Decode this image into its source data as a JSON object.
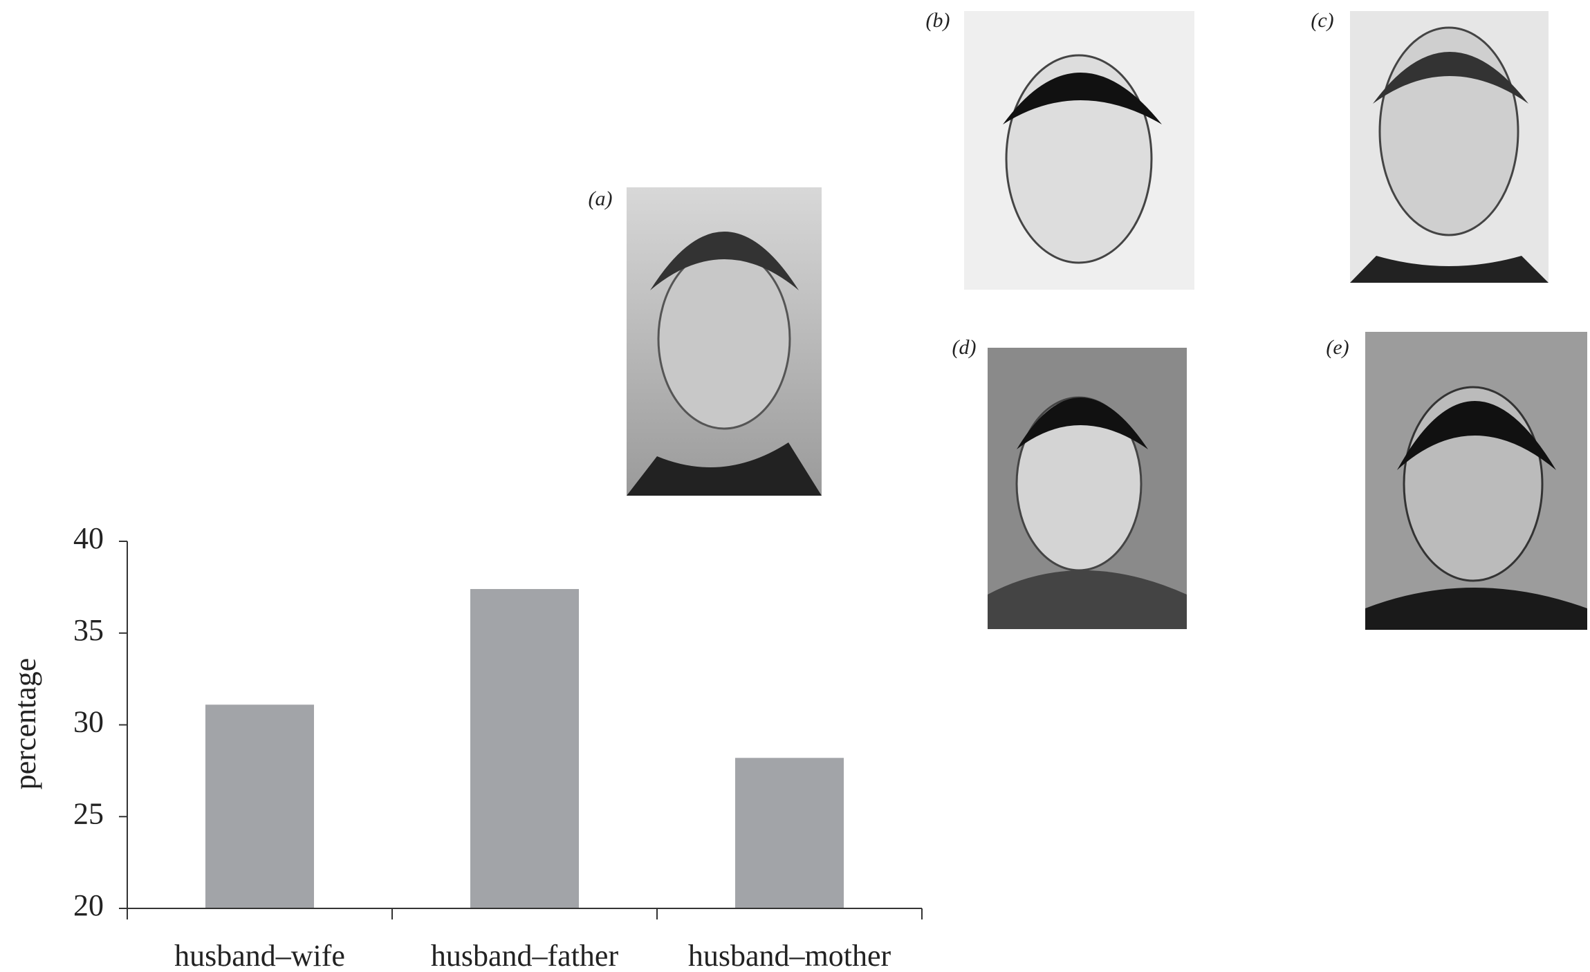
{
  "chart_data": {
    "type": "bar",
    "y_label": "percentage",
    "categories": [
      "husband–wife",
      "husband–father",
      "husband–mother"
    ],
    "values": [
      31.1,
      37.4,
      28.2
    ],
    "color": "#a2a4a8",
    "ylim": [
      20,
      40
    ],
    "yticks": [
      20,
      25,
      30,
      35,
      40
    ],
    "grid": false
  },
  "panels": {
    "labels": [
      "(a)",
      "(b)",
      "(c)",
      "(d)",
      "(e)"
    ]
  }
}
